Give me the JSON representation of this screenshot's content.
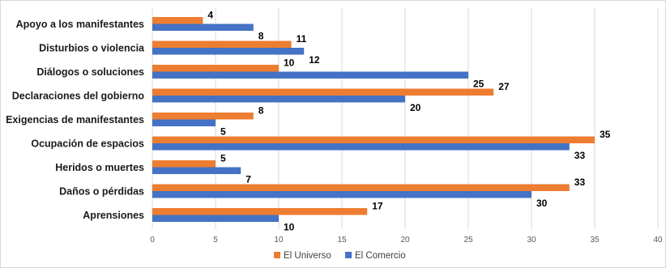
{
  "chart_data": {
    "type": "bar",
    "orientation": "horizontal",
    "categories": [
      "Apoyo a los manifestantes",
      "Disturbios o violencia",
      "Diálogos o soluciones",
      "Declaraciones del gobierno",
      "Exigencias de manifestantes",
      "Ocupación de espacios",
      "Heridos o muertes",
      "Daños o pérdidas",
      "Aprensiones"
    ],
    "series": [
      {
        "name": "El Universo",
        "color": "#ED7D31",
        "values": [
          4,
          11,
          10,
          27,
          8,
          35,
          5,
          33,
          17
        ]
      },
      {
        "name": "El Comercio",
        "color": "#4472C4",
        "values": [
          8,
          12,
          25,
          20,
          5,
          33,
          7,
          30,
          10
        ]
      }
    ],
    "xlim": [
      0,
      40
    ],
    "xticks": [
      "0",
      "5",
      "10",
      "15",
      "20",
      "25",
      "30",
      "35",
      "40"
    ],
    "grid": "vertical",
    "legend": "bottom",
    "data_labels": true
  }
}
